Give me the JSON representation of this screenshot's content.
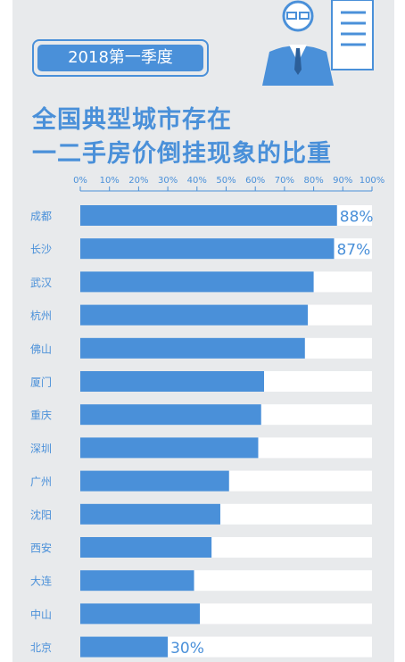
{
  "badge": {
    "label": "2018第一季度"
  },
  "header": {
    "title_line1": "全国典型城市存在",
    "title_line2": "一二手房价倒挂现象的比重"
  },
  "colors": {
    "background": "#e8eaec",
    "accent": "#4a90d9",
    "bar_track": "#ffffff",
    "tick_text": "#4a90d9",
    "city_text": "#4a90d9"
  },
  "chart_data": {
    "type": "bar",
    "orientation": "horizontal",
    "title": "全国典型城市存在一二手房价倒挂现象的比重",
    "xlim": [
      0,
      100
    ],
    "x_ticks": [
      "0%",
      "10%",
      "20%",
      "30%",
      "40%",
      "50%",
      "60%",
      "70%",
      "80%",
      "90%",
      "100%"
    ],
    "categories": [
      "成都",
      "长沙",
      "武汉",
      "杭州",
      "佛山",
      "厦门",
      "重庆",
      "深圳",
      "广州",
      "沈阳",
      "西安",
      "大连",
      "中山",
      "北京"
    ],
    "values": [
      88,
      87,
      80,
      78,
      77,
      63,
      62,
      61,
      51,
      48,
      45,
      39,
      41,
      30
    ],
    "data_labels": [
      "88%",
      "87%",
      "",
      "",
      "",
      "",
      "",
      "",
      "",
      "",
      "",
      "",
      "",
      "30%"
    ],
    "grid": false,
    "legend": "none"
  }
}
